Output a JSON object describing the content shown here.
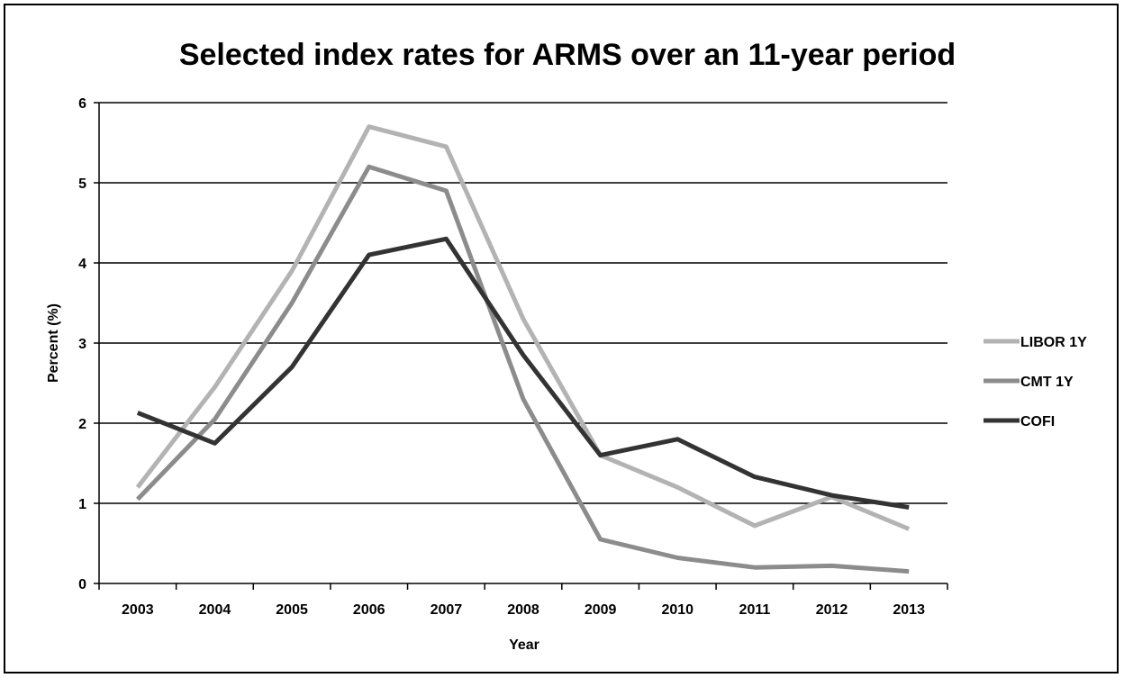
{
  "chart_data": {
    "type": "line",
    "title": "Selected index rates for ARMS over an 11-year period",
    "xlabel": "Year",
    "ylabel": "Percent (%)",
    "categories": [
      "2003",
      "2004",
      "2005",
      "2006",
      "2007",
      "2008",
      "2009",
      "2010",
      "2011",
      "2012",
      "2013"
    ],
    "ylim": [
      0,
      6
    ],
    "yticks": [
      "0",
      "1",
      "2",
      "3",
      "4",
      "5",
      "6"
    ],
    "grid": true,
    "legend_position": "right",
    "series": [
      {
        "name": "LIBOR 1Y",
        "color": "#b3b3b3",
        "values": [
          1.2,
          2.45,
          3.9,
          5.7,
          5.45,
          3.3,
          1.6,
          1.2,
          0.72,
          1.08,
          0.68
        ]
      },
      {
        "name": "CMT 1Y",
        "color": "#8c8c8c",
        "values": [
          1.05,
          2.05,
          3.5,
          5.2,
          4.9,
          2.3,
          0.55,
          0.32,
          0.2,
          0.22,
          0.15
        ]
      },
      {
        "name": "COFI",
        "color": "#333333",
        "values": [
          2.13,
          1.75,
          2.7,
          4.1,
          4.3,
          2.85,
          1.6,
          1.8,
          1.33,
          1.1,
          0.95
        ]
      }
    ]
  }
}
